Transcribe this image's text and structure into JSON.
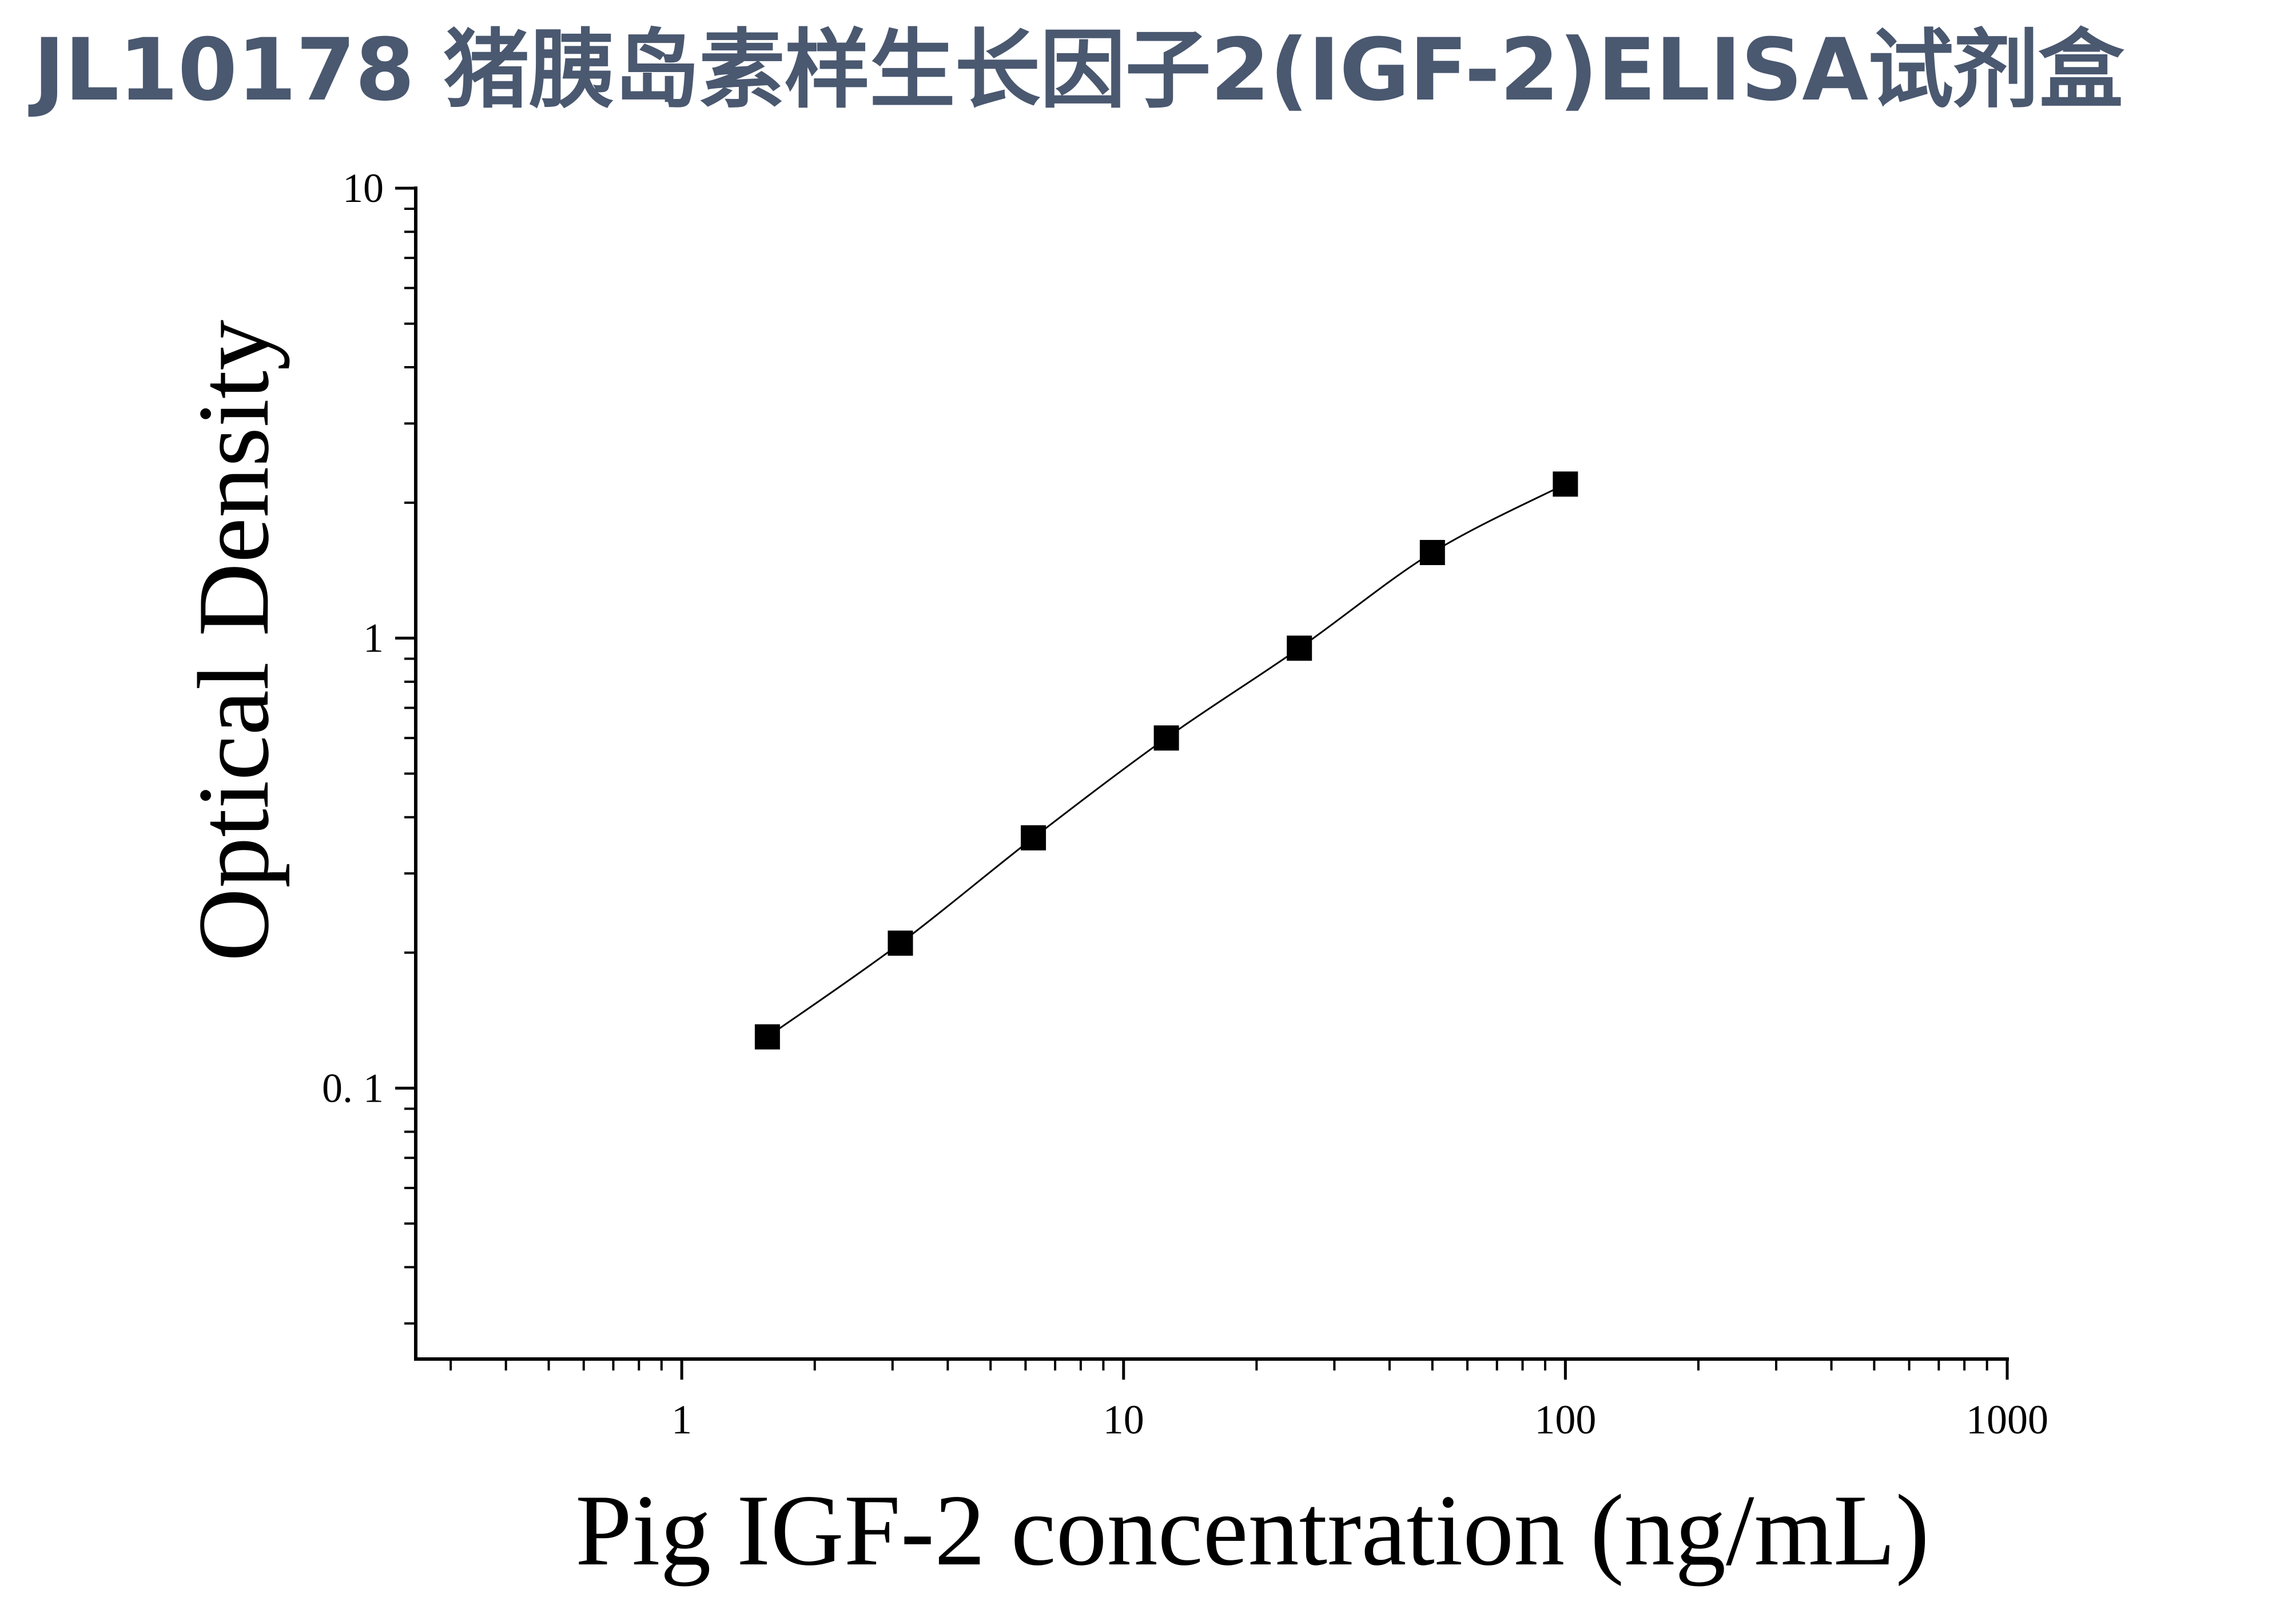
{
  "page": {
    "title": "JL10178 猪胰岛素样生长因子2(IGF-2)ELISA试剂盒"
  },
  "chart_data": {
    "type": "scatter",
    "title": "",
    "xlabel": "Pig IGF-2 concentration (ng/mL)",
    "ylabel": "Optical Density",
    "xscale": "log",
    "yscale": "log",
    "xlim": [
      0.25,
      1000
    ],
    "ylim": [
      0.025,
      10
    ],
    "x_ticks": [
      {
        "value": 1,
        "label": "1"
      },
      {
        "value": 10,
        "label": "10"
      },
      {
        "value": 100,
        "label": "100"
      },
      {
        "value": 1000,
        "label": "1000"
      }
    ],
    "y_ticks": [
      {
        "value": 0.1,
        "label": "0. 1"
      },
      {
        "value": 1,
        "label": "1"
      },
      {
        "value": 10,
        "label": "10"
      }
    ],
    "grid": false,
    "legend": "none",
    "series": [
      {
        "x": [
          1.5625,
          3.125,
          6.25,
          12.5,
          25,
          50,
          100
        ],
        "y": [
          0.13,
          0.21,
          0.36,
          0.6,
          0.95,
          1.55,
          2.2
        ],
        "marker": "square",
        "fit_line": true
      }
    ],
    "colors": {
      "marker": "#000000",
      "line": "#000000",
      "axis": "#000000"
    }
  }
}
